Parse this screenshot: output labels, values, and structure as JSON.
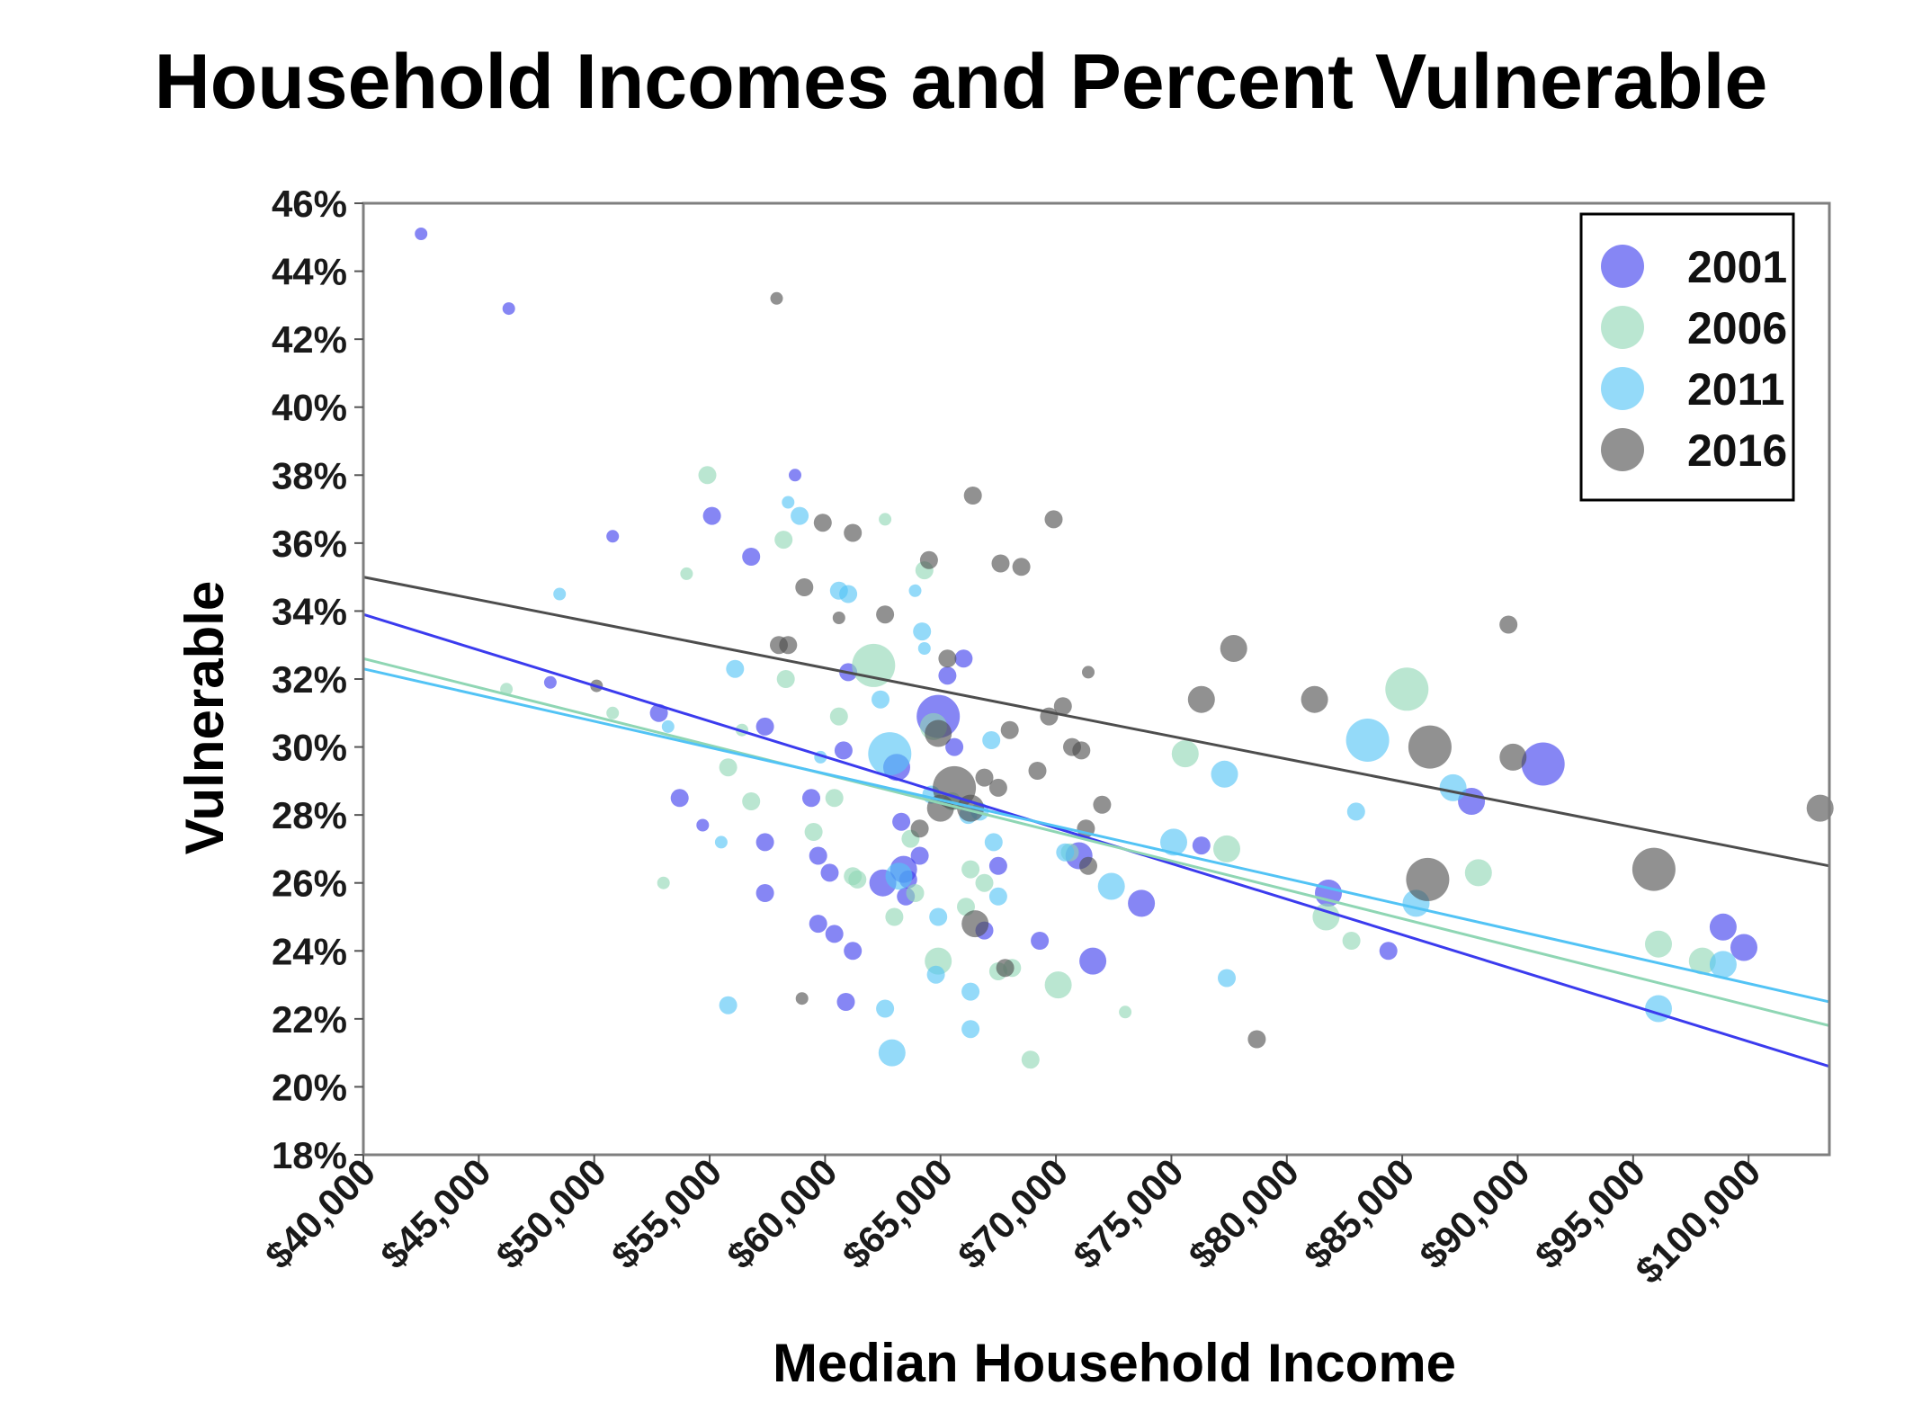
{
  "chart_data": {
    "type": "scatter",
    "title": "Household Incomes and Percent Vulnerable",
    "xlabel": "Median Household Income",
    "ylabel": "Vulnerable",
    "xlim": [
      40000,
      103500
    ],
    "ylim": [
      18,
      46
    ],
    "x_ticks": [
      40000,
      45000,
      50000,
      55000,
      60000,
      65000,
      70000,
      75000,
      80000,
      85000,
      90000,
      95000,
      100000
    ],
    "x_tick_labels": [
      "$40,000",
      "$45,000",
      "$50,000",
      "$55,000",
      "$60,000",
      "$65,000",
      "$70,000",
      "$75,000",
      "$80,000",
      "$85,000",
      "$90,000",
      "$95,000",
      "$100,000"
    ],
    "y_ticks": [
      18,
      20,
      22,
      24,
      26,
      28,
      30,
      32,
      34,
      36,
      38,
      40,
      42,
      44,
      46
    ],
    "y_tick_labels": [
      "18%",
      "20%",
      "22%",
      "24%",
      "26%",
      "28%",
      "30%",
      "32%",
      "34%",
      "36%",
      "38%",
      "40%",
      "42%",
      "44%",
      "46%"
    ],
    "grid": false,
    "legend_position": "top-right",
    "series": [
      {
        "name": "2001",
        "color": "#3b3bee",
        "trend": [
          [
            40000,
            33.9
          ],
          [
            103500,
            20.6
          ]
        ],
        "points": [
          [
            42500,
            45.1,
            1
          ],
          [
            46300,
            42.9,
            1
          ],
          [
            48100,
            31.9,
            1
          ],
          [
            50800,
            36.2,
            1
          ],
          [
            52800,
            31.0,
            2
          ],
          [
            53700,
            28.5,
            2
          ],
          [
            54700,
            27.7,
            1
          ],
          [
            55100,
            36.8,
            2
          ],
          [
            56800,
            35.6,
            2
          ],
          [
            57400,
            30.6,
            2
          ],
          [
            57400,
            27.2,
            2
          ],
          [
            57400,
            25.7,
            2
          ],
          [
            58700,
            38.0,
            1
          ],
          [
            59400,
            28.5,
            2
          ],
          [
            59700,
            26.8,
            2
          ],
          [
            59700,
            24.8,
            2
          ],
          [
            60200,
            26.3,
            2
          ],
          [
            60400,
            24.5,
            2
          ],
          [
            60800,
            29.9,
            2
          ],
          [
            60900,
            22.5,
            2
          ],
          [
            61000,
            32.2,
            2
          ],
          [
            61200,
            24.0,
            2
          ],
          [
            62500,
            26.0,
            3
          ],
          [
            63100,
            29.4,
            3
          ],
          [
            63300,
            27.8,
            2
          ],
          [
            63400,
            26.4,
            3
          ],
          [
            63500,
            25.6,
            2
          ],
          [
            63600,
            26.1,
            2
          ],
          [
            64100,
            26.8,
            2
          ],
          [
            64900,
            30.9,
            4
          ],
          [
            65300,
            32.1,
            2
          ],
          [
            65600,
            30.0,
            2
          ],
          [
            66000,
            32.6,
            2
          ],
          [
            66900,
            24.6,
            2
          ],
          [
            67500,
            26.5,
            2
          ],
          [
            69300,
            24.3,
            2
          ],
          [
            71000,
            26.8,
            3
          ],
          [
            71600,
            23.7,
            3
          ],
          [
            73700,
            25.4,
            3
          ],
          [
            76300,
            27.1,
            2
          ],
          [
            81800,
            25.7,
            3
          ],
          [
            84400,
            24.0,
            2
          ],
          [
            88000,
            28.4,
            3
          ],
          [
            91100,
            29.5,
            4
          ],
          [
            98900,
            24.7,
            3
          ],
          [
            99800,
            24.1,
            3
          ]
        ]
      },
      {
        "name": "2006",
        "color": "#8fd6b4",
        "trend": [
          [
            40000,
            32.6
          ],
          [
            103500,
            21.8
          ]
        ],
        "points": [
          [
            46200,
            31.7,
            1
          ],
          [
            50800,
            31.0,
            1
          ],
          [
            53000,
            26.0,
            1
          ],
          [
            54000,
            35.1,
            1
          ],
          [
            54900,
            38.0,
            2
          ],
          [
            55800,
            29.4,
            2
          ],
          [
            56400,
            30.5,
            1
          ],
          [
            56800,
            28.4,
            2
          ],
          [
            58200,
            36.1,
            2
          ],
          [
            58300,
            32.0,
            2
          ],
          [
            59500,
            27.5,
            2
          ],
          [
            60400,
            28.5,
            2
          ],
          [
            60600,
            30.9,
            2
          ],
          [
            61200,
            26.2,
            2
          ],
          [
            61400,
            26.1,
            2
          ],
          [
            62100,
            32.4,
            4
          ],
          [
            62600,
            36.7,
            1
          ],
          [
            63000,
            25.0,
            2
          ],
          [
            63700,
            27.3,
            2
          ],
          [
            63900,
            25.7,
            2
          ],
          [
            64300,
            35.2,
            2
          ],
          [
            64700,
            30.6,
            3
          ],
          [
            64900,
            23.7,
            3
          ],
          [
            65500,
            28.4,
            2
          ],
          [
            66100,
            25.3,
            2
          ],
          [
            66300,
            26.4,
            2
          ],
          [
            66900,
            26.0,
            2
          ],
          [
            67500,
            23.4,
            2
          ],
          [
            68100,
            23.5,
            2
          ],
          [
            68900,
            20.8,
            2
          ],
          [
            70100,
            23.0,
            3
          ],
          [
            70600,
            26.9,
            2
          ],
          [
            73000,
            22.2,
            1
          ],
          [
            75600,
            29.8,
            3
          ],
          [
            77400,
            27.0,
            3
          ],
          [
            81700,
            25.0,
            3
          ],
          [
            82800,
            24.3,
            2
          ],
          [
            85200,
            31.7,
            4
          ],
          [
            88300,
            26.3,
            3
          ],
          [
            96100,
            24.2,
            3
          ],
          [
            98000,
            23.7,
            3
          ]
        ]
      },
      {
        "name": "2011",
        "color": "#52c3f5",
        "trend": [
          [
            40000,
            32.3
          ],
          [
            103500,
            22.5
          ]
        ],
        "points": [
          [
            48500,
            34.5,
            1
          ],
          [
            53200,
            30.6,
            1
          ],
          [
            55500,
            27.2,
            1
          ],
          [
            55800,
            22.4,
            2
          ],
          [
            56100,
            32.3,
            2
          ],
          [
            58400,
            37.2,
            1
          ],
          [
            58900,
            36.8,
            2
          ],
          [
            59800,
            29.7,
            1
          ],
          [
            60600,
            34.6,
            2
          ],
          [
            61000,
            34.5,
            2
          ],
          [
            62400,
            31.4,
            2
          ],
          [
            62600,
            22.3,
            2
          ],
          [
            62800,
            29.8,
            4
          ],
          [
            62900,
            21.0,
            3
          ],
          [
            63200,
            26.2,
            3
          ],
          [
            63900,
            34.6,
            1
          ],
          [
            64200,
            33.4,
            2
          ],
          [
            64300,
            32.9,
            1
          ],
          [
            64600,
            28.6,
            2
          ],
          [
            64800,
            23.3,
            2
          ],
          [
            64900,
            25.0,
            2
          ],
          [
            66200,
            28.0,
            2
          ],
          [
            66300,
            21.7,
            2
          ],
          [
            66300,
            22.8,
            2
          ],
          [
            66700,
            28.1,
            2
          ],
          [
            67200,
            30.2,
            2
          ],
          [
            67300,
            27.2,
            2
          ],
          [
            67500,
            25.6,
            2
          ],
          [
            70400,
            26.9,
            2
          ],
          [
            72400,
            25.9,
            3
          ],
          [
            75100,
            27.2,
            3
          ],
          [
            77300,
            29.2,
            3
          ],
          [
            77400,
            23.2,
            2
          ],
          [
            83000,
            28.1,
            2
          ],
          [
            83500,
            30.2,
            4
          ],
          [
            85600,
            25.4,
            3
          ],
          [
            87200,
            28.8,
            3
          ],
          [
            96100,
            22.3,
            3
          ],
          [
            98900,
            23.6,
            3
          ]
        ]
      },
      {
        "name": "2016",
        "color": "#4d4d4d",
        "trend": [
          [
            40000,
            35.0
          ],
          [
            103500,
            26.5
          ]
        ],
        "points": [
          [
            50100,
            31.8,
            1
          ],
          [
            57900,
            43.2,
            1
          ],
          [
            58000,
            33.0,
            2
          ],
          [
            58400,
            33.0,
            2
          ],
          [
            59000,
            22.6,
            1
          ],
          [
            59100,
            34.7,
            2
          ],
          [
            59900,
            36.6,
            2
          ],
          [
            60600,
            33.8,
            1
          ],
          [
            61200,
            36.3,
            2
          ],
          [
            62600,
            33.9,
            2
          ],
          [
            64100,
            27.6,
            2
          ],
          [
            64500,
            35.5,
            2
          ],
          [
            64900,
            30.4,
            3
          ],
          [
            65000,
            28.2,
            3
          ],
          [
            65300,
            32.6,
            2
          ],
          [
            65600,
            28.8,
            4
          ],
          [
            66300,
            28.2,
            3
          ],
          [
            66400,
            37.4,
            2
          ],
          [
            66500,
            24.8,
            3
          ],
          [
            66900,
            29.1,
            2
          ],
          [
            67500,
            28.8,
            2
          ],
          [
            67600,
            35.4,
            2
          ],
          [
            67800,
            23.5,
            2
          ],
          [
            68000,
            30.5,
            2
          ],
          [
            68500,
            35.3,
            2
          ],
          [
            69200,
            29.3,
            2
          ],
          [
            69700,
            30.9,
            2
          ],
          [
            69900,
            36.7,
            2
          ],
          [
            70300,
            31.2,
            2
          ],
          [
            70700,
            30.0,
            2
          ],
          [
            71100,
            29.9,
            2
          ],
          [
            71300,
            27.6,
            2
          ],
          [
            71400,
            26.5,
            2
          ],
          [
            71400,
            32.2,
            1
          ],
          [
            72000,
            28.3,
            2
          ],
          [
            76300,
            31.4,
            3
          ],
          [
            77700,
            32.9,
            3
          ],
          [
            78700,
            21.4,
            2
          ],
          [
            81200,
            31.4,
            3
          ],
          [
            86100,
            26.1,
            4
          ],
          [
            86200,
            30.0,
            4
          ],
          [
            89600,
            33.6,
            2
          ],
          [
            89800,
            29.7,
            3
          ],
          [
            95900,
            26.4,
            4
          ],
          [
            103100,
            28.2,
            3
          ]
        ]
      }
    ]
  }
}
